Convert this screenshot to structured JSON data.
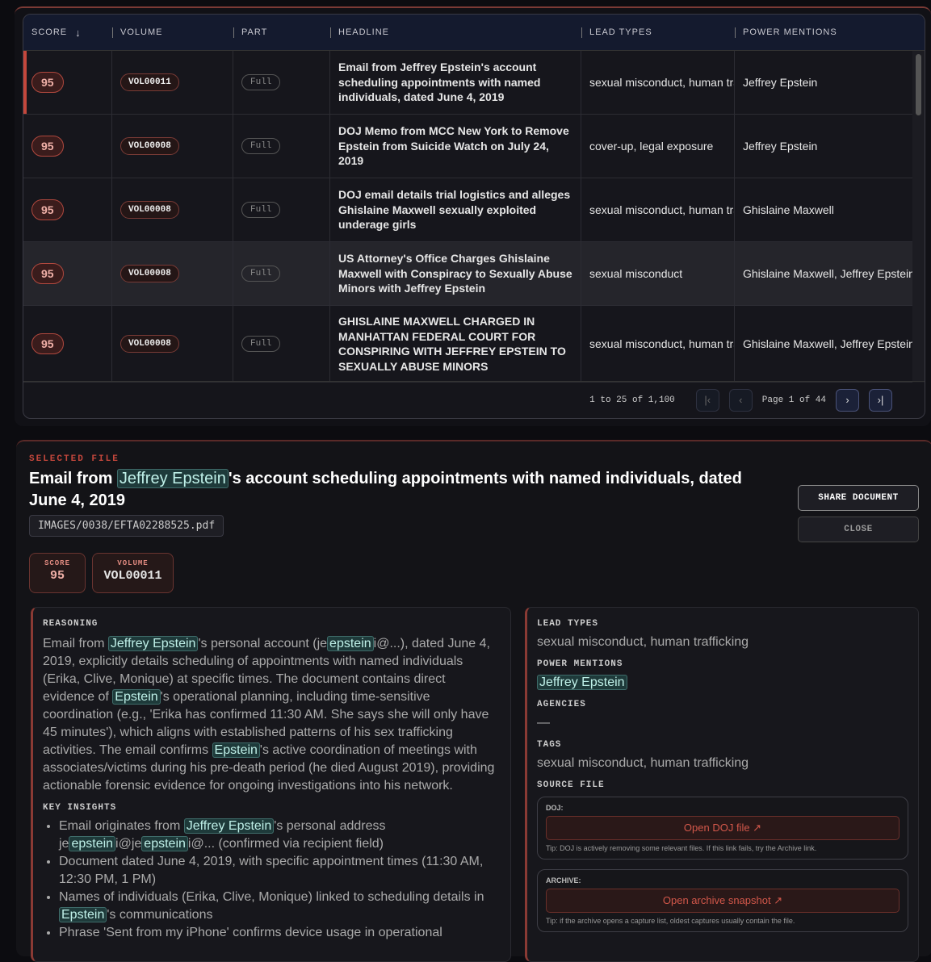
{
  "table": {
    "columns": [
      "SCORE",
      "VOLUME",
      "PART",
      "HEADLINE",
      "LEAD TYPES",
      "POWER MENTIONS"
    ],
    "sort_icon": "arrow-down-icon",
    "rows": [
      {
        "score": "95",
        "volume": "VOL00011",
        "part": "Full",
        "headline": "Email from Jeffrey Epstein's account scheduling appointments with named individuals, dated June 4, 2019",
        "lead_types": "sexual misconduct, human trafficking",
        "power": "Jeffrey Epstein"
      },
      {
        "score": "95",
        "volume": "VOL00008",
        "part": "Full",
        "headline": "DOJ Memo from MCC New York to Remove Epstein from Suicide Watch on July 24, 2019",
        "lead_types": "cover-up, legal exposure",
        "power": "Jeffrey Epstein"
      },
      {
        "score": "95",
        "volume": "VOL00008",
        "part": "Full",
        "headline": "DOJ email details trial logistics and alleges Ghislaine Maxwell sexually exploited underage girls",
        "lead_types": "sexual misconduct, human trafficking",
        "power": "Ghislaine Maxwell"
      },
      {
        "score": "95",
        "volume": "VOL00008",
        "part": "Full",
        "headline": "US Attorney's Office Charges Ghislaine Maxwell with Conspiracy to Sexually Abuse Minors with Jeffrey Epstein",
        "lead_types": "sexual misconduct",
        "power": "Ghislaine Maxwell, Jeffrey Epstein"
      },
      {
        "score": "95",
        "volume": "VOL00008",
        "part": "Full",
        "headline": "GHISLAINE MAXWELL CHARGED IN MANHATTAN FEDERAL COURT FOR CONSPIRING WITH JEFFREY EPSTEIN TO SEXUALLY ABUSE MINORS",
        "lead_types": "sexual misconduct, human trafficking",
        "power": "Ghislaine Maxwell, Jeffrey Epstein"
      }
    ],
    "pagination": {
      "range": "1 to 25 of 1,100",
      "page": "Page 1 of 44"
    }
  },
  "detail": {
    "label": "SELECTED FILE",
    "title": [
      {
        "t": "Email from "
      },
      {
        "t": "Jeffrey Epstein",
        "hl": true
      },
      {
        "t": "'s account scheduling appointments with named individuals, dated June 4, 2019"
      }
    ],
    "path": "IMAGES/0038/EFTA02288525.pdf",
    "score_label": "SCORE",
    "score": "95",
    "volume_label": "VOLUME",
    "volume": "VOL00011",
    "share": "SHARE DOCUMENT",
    "close": "CLOSE",
    "reasoning_label": "REASONING",
    "reasoning": [
      {
        "t": "Email from "
      },
      {
        "t": "Jeffrey Epstein",
        "hl": true
      },
      {
        "t": "'s personal account (je"
      },
      {
        "t": "epstein",
        "hl": true
      },
      {
        "t": "i@...), dated June 4, 2019, explicitly details scheduling of appointments with named individuals (Erika, Clive, Monique) at specific times. The document contains direct evidence of "
      },
      {
        "t": "Epstein",
        "hl": true
      },
      {
        "t": "'s operational planning, including time-sensitive coordination (e.g., 'Erika has confirmed 11:30 AM. She says she will only have 45 minutes'), which aligns with established patterns of his sex trafficking activities. The email confirms "
      },
      {
        "t": "Epstein",
        "hl": true
      },
      {
        "t": "'s active coordination of meetings with associates/victims during his pre-death period (he died August 2019), providing actionable forensic evidence for ongoing investigations into his network."
      }
    ],
    "insights_label": "KEY INSIGHTS",
    "insights": [
      [
        {
          "t": "Email originates from "
        },
        {
          "t": "Jeffrey Epstein",
          "hl": true
        },
        {
          "t": "'s personal address je"
        },
        {
          "t": "epstein",
          "hl": true
        },
        {
          "t": "i@je"
        },
        {
          "t": "epstein",
          "hl": true
        },
        {
          "t": "i@... (confirmed via recipient field)"
        }
      ],
      [
        {
          "t": "Document dated June 4, 2019, with specific appointment times (11:30 AM, 12:30 PM, 1 PM)"
        }
      ],
      [
        {
          "t": "Names of individuals (Erika, Clive, Monique) linked to scheduling details in "
        },
        {
          "t": "Epstein",
          "hl": true
        },
        {
          "t": "'s communications"
        }
      ],
      [
        {
          "t": "Phrase 'Sent from my iPhone' confirms device usage in operational"
        }
      ]
    ],
    "lead_types_label": "LEAD TYPES",
    "lead_types": "sexual misconduct, human trafficking",
    "power_label": "POWER MENTIONS",
    "power": "Jeffrey Epstein",
    "agencies_label": "AGENCIES",
    "agencies": "—",
    "tags_label": "TAGS",
    "tags": "sexual misconduct, human trafficking",
    "source_label": "SOURCE FILE",
    "doj": {
      "label": "DOJ:",
      "button": "Open DOJ file ↗",
      "tip": "Tip: DOJ is actively removing some relevant files. If this link fails, try the Archive link."
    },
    "archive": {
      "label": "ARCHIVE:",
      "button": "Open archive snapshot ↗",
      "tip": "Tip: if the archive opens a capture list, oldest captures usually contain the file."
    }
  },
  "colors": {
    "accent": "#c4473c",
    "highlight": "#1e3a3a"
  }
}
